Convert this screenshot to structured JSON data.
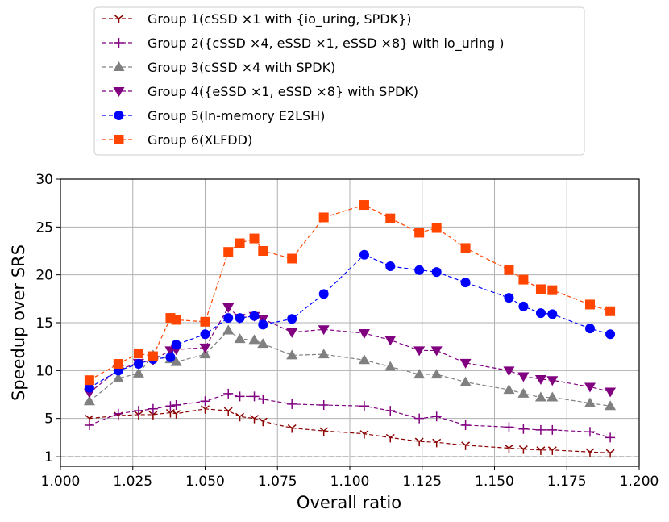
{
  "chart_data": {
    "type": "line",
    "title": "",
    "xlabel": "Overall ratio",
    "ylabel": "Speedup over SRS",
    "xlim": [
      1.0,
      1.2
    ],
    "ylim": [
      0,
      30
    ],
    "xticks": [
      1.0,
      1.025,
      1.05,
      1.075,
      1.1,
      1.125,
      1.15,
      1.175,
      1.2
    ],
    "xtick_labels": [
      "1.000",
      "1.025",
      "1.050",
      "1.075",
      "1.100",
      "1.125",
      "1.150",
      "1.175",
      "1.200"
    ],
    "yticks": [
      1,
      5,
      10,
      15,
      20,
      25,
      30
    ],
    "ytick_labels": [
      "1",
      "5",
      "10",
      "15",
      "20",
      "25",
      "30"
    ],
    "grid": true,
    "reference_line": {
      "y": 1,
      "style": "dashed",
      "color": "#808080"
    },
    "legend_position": "top-center, outside plot",
    "series": [
      {
        "name": "Group 1(cSSD ×1 with {io_uring, SPDK})",
        "color": "#8b0000",
        "marker": "tri_down",
        "x": [
          1.01,
          1.02,
          1.027,
          1.032,
          1.038,
          1.04,
          1.05,
          1.058,
          1.062,
          1.067,
          1.07,
          1.08,
          1.091,
          1.105,
          1.114,
          1.124,
          1.13,
          1.14,
          1.155,
          1.16,
          1.166,
          1.17,
          1.183,
          1.19
        ],
        "values": [
          5.0,
          5.3,
          5.4,
          5.4,
          5.6,
          5.5,
          6.0,
          5.8,
          5.2,
          5.0,
          4.7,
          4.0,
          3.7,
          3.4,
          3.0,
          2.6,
          2.5,
          2.2,
          1.9,
          1.8,
          1.7,
          1.7,
          1.5,
          1.4
        ]
      },
      {
        "name": "Group 2({cSSD ×4, eSSD ×1, eSSD ×8} with io_uring )",
        "color": "#800080",
        "marker": "plus",
        "x": [
          1.01,
          1.02,
          1.027,
          1.032,
          1.038,
          1.04,
          1.05,
          1.058,
          1.062,
          1.067,
          1.07,
          1.08,
          1.091,
          1.105,
          1.114,
          1.124,
          1.13,
          1.14,
          1.155,
          1.16,
          1.166,
          1.17,
          1.183,
          1.19
        ],
        "values": [
          4.3,
          5.5,
          5.8,
          6.0,
          6.3,
          6.4,
          6.8,
          7.6,
          7.3,
          7.3,
          7.0,
          6.5,
          6.4,
          6.3,
          5.8,
          5.0,
          5.2,
          4.3,
          4.1,
          3.9,
          3.8,
          3.8,
          3.6,
          3.0
        ]
      },
      {
        "name": "Group 3(cSSD ×4 with SPDK)",
        "color": "#808080",
        "marker": "triangle-up",
        "x": [
          1.01,
          1.02,
          1.027,
          1.032,
          1.038,
          1.04,
          1.05,
          1.058,
          1.062,
          1.067,
          1.07,
          1.08,
          1.091,
          1.105,
          1.114,
          1.124,
          1.13,
          1.14,
          1.155,
          1.16,
          1.166,
          1.17,
          1.183,
          1.19
        ],
        "values": [
          6.8,
          9.2,
          9.7,
          11.6,
          11.2,
          10.9,
          11.7,
          14.2,
          13.3,
          13.2,
          12.8,
          11.6,
          11.7,
          11.1,
          10.4,
          9.6,
          9.6,
          8.8,
          8.0,
          7.6,
          7.2,
          7.2,
          6.6,
          6.3
        ]
      },
      {
        "name": "Group 4({eSSD ×1, eSSD ×8} with SPDK)",
        "color": "#800080",
        "marker": "triangle-down",
        "x": [
          1.01,
          1.02,
          1.027,
          1.032,
          1.038,
          1.04,
          1.05,
          1.058,
          1.062,
          1.067,
          1.07,
          1.08,
          1.091,
          1.105,
          1.114,
          1.124,
          1.13,
          1.14,
          1.155,
          1.16,
          1.166,
          1.17,
          1.183,
          1.19
        ],
        "values": [
          7.7,
          10.1,
          10.8,
          11.1,
          12.1,
          12.2,
          12.4,
          16.6,
          15.5,
          15.7,
          15.4,
          14.0,
          14.3,
          13.9,
          13.2,
          12.1,
          12.1,
          10.8,
          10.0,
          9.4,
          9.1,
          9.0,
          8.3,
          7.8
        ]
      },
      {
        "name": "Group 5(In-memory E2LSH)",
        "color": "#0000ff",
        "marker": "circle",
        "x": [
          1.01,
          1.02,
          1.027,
          1.032,
          1.038,
          1.04,
          1.05,
          1.058,
          1.062,
          1.067,
          1.07,
          1.08,
          1.091,
          1.105,
          1.114,
          1.124,
          1.13,
          1.14,
          1.155,
          1.16,
          1.166,
          1.17,
          1.183,
          1.19
        ],
        "values": [
          8.2,
          10.0,
          10.7,
          11.2,
          11.4,
          12.7,
          13.8,
          15.5,
          15.5,
          15.7,
          14.8,
          15.4,
          18.0,
          22.1,
          20.9,
          20.5,
          20.3,
          19.2,
          17.6,
          16.7,
          16.0,
          15.9,
          14.4,
          13.8
        ]
      },
      {
        "name": "Group 6(XLFDD)",
        "color": "#ff4500",
        "marker": "square",
        "x": [
          1.01,
          1.02,
          1.027,
          1.032,
          1.038,
          1.04,
          1.05,
          1.058,
          1.062,
          1.067,
          1.07,
          1.08,
          1.091,
          1.105,
          1.114,
          1.124,
          1.13,
          1.14,
          1.155,
          1.16,
          1.166,
          1.17,
          1.183,
          1.19
        ],
        "values": [
          9.0,
          10.7,
          11.8,
          11.5,
          15.5,
          15.3,
          15.1,
          22.4,
          23.3,
          23.8,
          22.5,
          21.7,
          26.0,
          27.3,
          25.9,
          24.4,
          24.9,
          22.8,
          20.5,
          19.5,
          18.5,
          18.4,
          16.9,
          16.2
        ]
      }
    ]
  }
}
